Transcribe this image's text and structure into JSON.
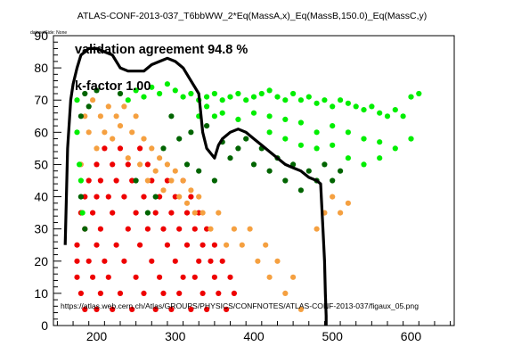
{
  "chart_data": {
    "type": "scatter",
    "title": "ATLAS-CONF-2013-037_T6bbWW_2*Eq(MassA,x)_Eq(MassB,150.0)_Eq(MassC,y)",
    "dataset_label": "datasetSide: None",
    "xlabel": "",
    "ylabel": "",
    "xlim": [
      145,
      655
    ],
    "ylim": [
      0,
      90
    ],
    "x_ticks": [
      "200",
      "300",
      "400",
      "500",
      "600"
    ],
    "y_ticks": [
      "0",
      "10",
      "20",
      "30",
      "40",
      "50",
      "60",
      "70",
      "80",
      "90"
    ],
    "grid": false,
    "annotations": {
      "agreement": "validation agreement 94.8 %",
      "kfactor": "k-factor 1.00",
      "url": "https://atlas.web.cern.ch/Atlas/GROUPS/PHYSICS/CONFNOTES/ATLAS-CONF-2013-037/figaux_05.png"
    },
    "colors": {
      "excluded_both": "#ee0000",
      "excluded_official_only": "#f5a040",
      "excluded_validation_only": "#006400",
      "allowed_both": "#00ee00",
      "contour": "#000000"
    },
    "series": [
      {
        "color": "#ee0000",
        "points": [
          [
            175,
            25
          ],
          [
            175,
            20
          ],
          [
            175,
            15
          ],
          [
            180,
            35
          ],
          [
            180,
            10
          ],
          [
            185,
            40
          ],
          [
            185,
            30
          ],
          [
            185,
            5
          ],
          [
            190,
            45
          ],
          [
            190,
            20
          ],
          [
            195,
            35
          ],
          [
            195,
            15
          ],
          [
            200,
            50
          ],
          [
            200,
            40
          ],
          [
            200,
            25
          ],
          [
            200,
            5
          ],
          [
            205,
            45
          ],
          [
            205,
            30
          ],
          [
            205,
            10
          ],
          [
            210,
            55
          ],
          [
            210,
            20
          ],
          [
            215,
            40
          ],
          [
            215,
            15
          ],
          [
            220,
            50
          ],
          [
            220,
            35
          ],
          [
            220,
            5
          ],
          [
            225,
            45
          ],
          [
            225,
            25
          ],
          [
            230,
            55
          ],
          [
            230,
            10
          ],
          [
            235,
            40
          ],
          [
            235,
            20
          ],
          [
            240,
            50
          ],
          [
            240,
            30
          ],
          [
            245,
            45
          ],
          [
            245,
            5
          ],
          [
            250,
            35
          ],
          [
            250,
            15
          ],
          [
            255,
            55
          ],
          [
            255,
            25
          ],
          [
            260,
            40
          ],
          [
            260,
            10
          ],
          [
            265,
            50
          ],
          [
            265,
            30
          ],
          [
            270,
            45
          ],
          [
            270,
            20
          ],
          [
            275,
            35
          ],
          [
            275,
            5
          ],
          [
            280,
            40
          ],
          [
            280,
            15
          ],
          [
            285,
            30
          ],
          [
            285,
            10
          ],
          [
            290,
            45
          ],
          [
            290,
            25
          ],
          [
            295,
            35
          ],
          [
            295,
            5
          ],
          [
            300,
            40
          ],
          [
            300,
            20
          ],
          [
            305,
            30
          ],
          [
            305,
            10
          ],
          [
            310,
            45
          ],
          [
            310,
            15
          ],
          [
            315,
            35
          ],
          [
            315,
            25
          ],
          [
            320,
            40
          ],
          [
            320,
            5
          ],
          [
            325,
            30
          ],
          [
            325,
            15
          ],
          [
            330,
            35
          ],
          [
            330,
            20
          ],
          [
            335,
            25
          ],
          [
            335,
            10
          ],
          [
            340,
            30
          ],
          [
            340,
            5
          ],
          [
            345,
            20
          ],
          [
            350,
            25
          ],
          [
            350,
            15
          ],
          [
            355,
            10
          ],
          [
            360,
            20
          ],
          [
            365,
            5
          ],
          [
            370,
            15
          ],
          [
            375,
            10
          ]
        ]
      },
      {
        "color": "#f5a040",
        "points": [
          [
            180,
            50
          ],
          [
            185,
            65
          ],
          [
            190,
            60
          ],
          [
            195,
            70
          ],
          [
            200,
            55
          ],
          [
            205,
            65
          ],
          [
            210,
            60
          ],
          [
            215,
            68
          ],
          [
            220,
            58
          ],
          [
            225,
            65
          ],
          [
            230,
            62
          ],
          [
            235,
            68
          ],
          [
            240,
            52
          ],
          [
            245,
            60
          ],
          [
            250,
            65
          ],
          [
            255,
            50
          ],
          [
            260,
            58
          ],
          [
            265,
            45
          ],
          [
            270,
            55
          ],
          [
            275,
            48
          ],
          [
            280,
            52
          ],
          [
            285,
            42
          ],
          [
            290,
            50
          ],
          [
            295,
            45
          ],
          [
            300,
            48
          ],
          [
            305,
            40
          ],
          [
            310,
            45
          ],
          [
            315,
            38
          ],
          [
            320,
            42
          ],
          [
            325,
            35
          ],
          [
            330,
            40
          ],
          [
            335,
            35
          ],
          [
            345,
            30
          ],
          [
            355,
            35
          ],
          [
            365,
            25
          ],
          [
            375,
            30
          ],
          [
            385,
            25
          ],
          [
            395,
            30
          ],
          [
            405,
            20
          ],
          [
            415,
            25
          ],
          [
            420,
            15
          ],
          [
            430,
            20
          ],
          [
            440,
            10
          ],
          [
            450,
            15
          ],
          [
            460,
            5
          ],
          [
            480,
            30
          ],
          [
            490,
            35
          ],
          [
            500,
            40
          ],
          [
            510,
            35
          ],
          [
            520,
            38
          ]
        ]
      },
      {
        "color": "#006400",
        "points": [
          [
            180,
            65
          ],
          [
            180,
            40
          ],
          [
            185,
            72
          ],
          [
            185,
            30
          ],
          [
            190,
            68
          ],
          [
            200,
            73
          ],
          [
            230,
            72
          ],
          [
            250,
            45
          ],
          [
            265,
            35
          ],
          [
            275,
            40
          ],
          [
            285,
            55
          ],
          [
            295,
            65
          ],
          [
            305,
            58
          ],
          [
            315,
            50
          ],
          [
            320,
            60
          ],
          [
            330,
            48
          ],
          [
            340,
            62
          ],
          [
            350,
            45
          ],
          [
            360,
            57
          ],
          [
            370,
            52
          ],
          [
            380,
            55
          ],
          [
            390,
            58
          ],
          [
            400,
            50
          ],
          [
            410,
            55
          ],
          [
            420,
            48
          ],
          [
            430,
            52
          ],
          [
            440,
            45
          ],
          [
            450,
            50
          ],
          [
            460,
            42
          ],
          [
            470,
            48
          ],
          [
            480,
            45
          ],
          [
            490,
            50
          ],
          [
            500,
            45
          ],
          [
            510,
            48
          ]
        ]
      },
      {
        "color": "#00ee00",
        "points": [
          [
            175,
            70
          ],
          [
            175,
            60
          ],
          [
            178,
            50
          ],
          [
            180,
            45
          ],
          [
            182,
            35
          ],
          [
            240,
            70
          ],
          [
            250,
            73
          ],
          [
            260,
            71
          ],
          [
            270,
            74
          ],
          [
            280,
            72
          ],
          [
            290,
            75
          ],
          [
            300,
            73
          ],
          [
            310,
            71
          ],
          [
            320,
            72
          ],
          [
            330,
            70
          ],
          [
            340,
            71
          ],
          [
            350,
            72
          ],
          [
            360,
            70
          ],
          [
            370,
            71
          ],
          [
            380,
            72
          ],
          [
            390,
            70
          ],
          [
            400,
            71
          ],
          [
            410,
            72
          ],
          [
            420,
            73
          ],
          [
            430,
            71
          ],
          [
            440,
            70
          ],
          [
            450,
            72
          ],
          [
            460,
            70
          ],
          [
            470,
            71
          ],
          [
            480,
            69
          ],
          [
            490,
            70
          ],
          [
            500,
            68
          ],
          [
            510,
            70
          ],
          [
            520,
            69
          ],
          [
            530,
            68
          ],
          [
            540,
            67
          ],
          [
            550,
            68
          ],
          [
            560,
            66
          ],
          [
            570,
            65
          ],
          [
            580,
            67
          ],
          [
            590,
            65
          ],
          [
            600,
            71
          ],
          [
            610,
            72
          ],
          [
            330,
            65
          ],
          [
            340,
            68
          ],
          [
            350,
            65
          ],
          [
            360,
            66
          ],
          [
            380,
            64
          ],
          [
            400,
            66
          ],
          [
            420,
            65
          ],
          [
            440,
            64
          ],
          [
            460,
            63
          ],
          [
            480,
            60
          ],
          [
            500,
            62
          ],
          [
            520,
            60
          ],
          [
            540,
            58
          ],
          [
            560,
            57
          ],
          [
            580,
            55
          ],
          [
            600,
            58
          ],
          [
            420,
            60
          ],
          [
            440,
            58
          ],
          [
            460,
            56
          ],
          [
            480,
            55
          ],
          [
            500,
            56
          ],
          [
            520,
            52
          ],
          [
            540,
            50
          ],
          [
            560,
            52
          ]
        ]
      }
    ],
    "contour": [
      [
        160,
        25
      ],
      [
        163,
        55
      ],
      [
        167,
        70
      ],
      [
        170,
        75
      ],
      [
        175,
        80
      ],
      [
        180,
        84
      ],
      [
        185,
        85
      ],
      [
        190,
        86
      ],
      [
        200,
        86
      ],
      [
        210,
        85
      ],
      [
        220,
        84
      ],
      [
        230,
        80
      ],
      [
        240,
        79
      ],
      [
        250,
        79
      ],
      [
        260,
        79
      ],
      [
        270,
        81
      ],
      [
        280,
        82
      ],
      [
        290,
        83
      ],
      [
        300,
        82
      ],
      [
        310,
        80
      ],
      [
        320,
        76
      ],
      [
        330,
        72
      ],
      [
        335,
        60
      ],
      [
        340,
        55
      ],
      [
        350,
        52
      ],
      [
        355,
        56
      ],
      [
        360,
        58
      ],
      [
        370,
        60
      ],
      [
        380,
        61
      ],
      [
        390,
        60
      ],
      [
        400,
        58
      ],
      [
        410,
        56
      ],
      [
        420,
        54
      ],
      [
        430,
        52
      ],
      [
        440,
        50
      ],
      [
        450,
        49
      ],
      [
        460,
        48
      ],
      [
        470,
        46
      ],
      [
        480,
        45
      ],
      [
        485,
        44
      ],
      [
        488,
        30
      ],
      [
        490,
        20
      ],
      [
        491,
        10
      ],
      [
        492,
        3
      ],
      [
        492,
        0
      ]
    ]
  }
}
